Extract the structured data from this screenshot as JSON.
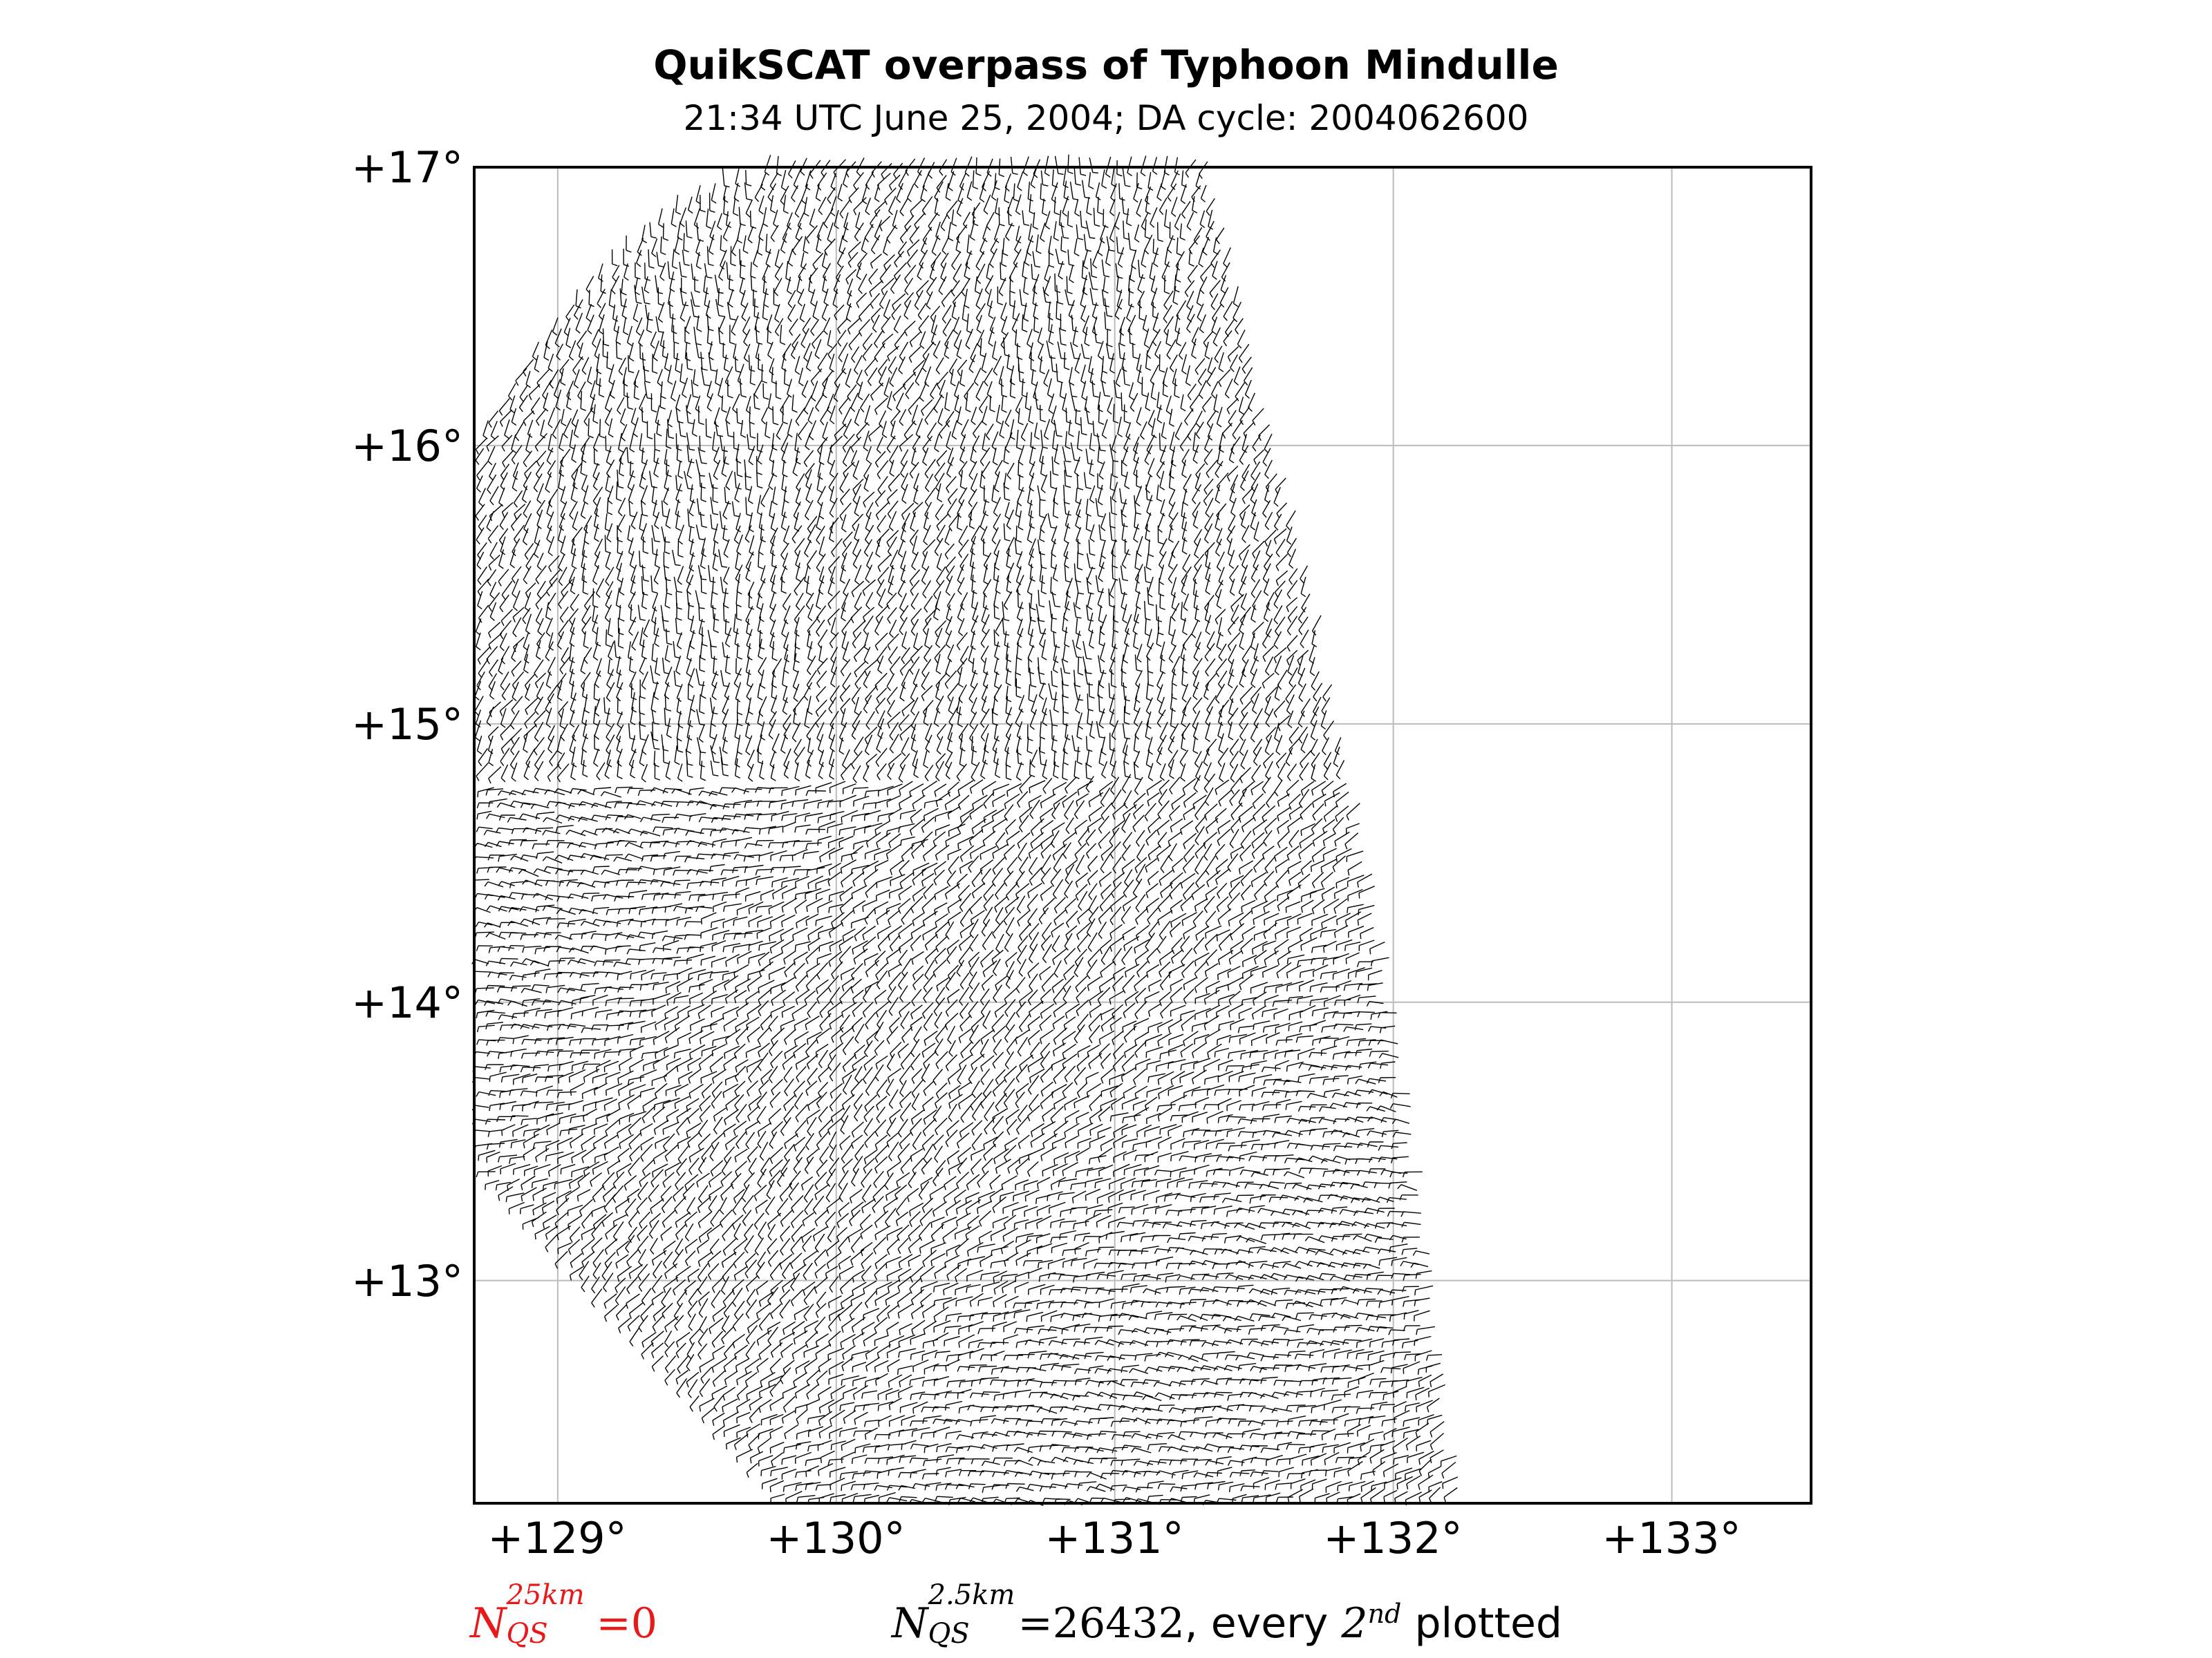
{
  "title": "QuikSCAT overpass of Typhoon Mindulle",
  "subtitle": "21:34 UTC June 25, 2004; DA cycle: 2004062600",
  "map": {
    "lon_range": [
      128.7,
      133.5
    ],
    "lat_range": [
      12.2,
      17.0
    ],
    "lat_ticks": [
      "+17°",
      "+16°",
      "+15°",
      "+14°",
      "+13°"
    ],
    "lat_tick_values": [
      17,
      16,
      15,
      14,
      13
    ],
    "lon_ticks": [
      "+129°",
      "+130°",
      "+131°",
      "+132°",
      "+133°"
    ],
    "lon_tick_values": [
      129,
      130,
      131,
      132,
      133
    ],
    "grid": true,
    "colors": {
      "barbs": "#000000",
      "grid": "#bbbbbb",
      "frame": "#000000"
    }
  },
  "footnotes": {
    "left": {
      "symbol": "N",
      "sub": "QS",
      "sup": "25km",
      "value": "=0",
      "color": "#e8191a"
    },
    "right": {
      "symbol": "N",
      "sub": "QS",
      "sup": "2.5km",
      "value": "=26432",
      "suffix1": ", every ",
      "order": "2",
      "order_sup": "nd",
      "suffix2": " plotted"
    }
  }
}
